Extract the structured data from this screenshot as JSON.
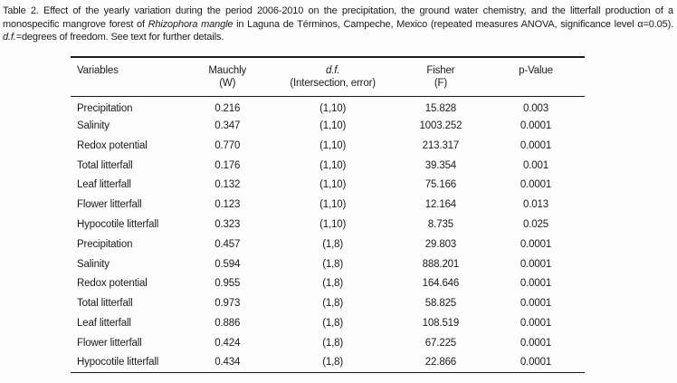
{
  "colors": {
    "background": "#fdfdfd",
    "text": "#1b1b1b",
    "rule": "#1b1b1b"
  },
  "caption": {
    "segments": [
      {
        "text": "Table 2. Effect of the yearly variation during the period 2006-2010 on the precipitation, the ground water chemistry, and the litterfall production of a monospecific mangrove forest of ",
        "italic": false
      },
      {
        "text": "Rhizophora mangle",
        "italic": true
      },
      {
        "text": " in Laguna de Términos, Campeche, Mexico (repeated measures ANOVA, significance level α=0.05). ",
        "italic": false
      },
      {
        "text": "d.f.",
        "italic": true
      },
      {
        "text": "=degrees of freedom. See text for further details.",
        "italic": false
      }
    ]
  },
  "table": {
    "headers": [
      {
        "line1": "Variables",
        "line2": ""
      },
      {
        "line1": "Mauchly",
        "line2": "(W)"
      },
      {
        "line1": "d.f.",
        "line2": "(Intersection, error)"
      },
      {
        "line1": "Fisher",
        "line2": "(F)"
      },
      {
        "line1": "p-Value",
        "line2": ""
      }
    ],
    "rows": [
      [
        "Precipitation",
        "0.216",
        "(1,10)",
        "15.828",
        "0.003"
      ],
      [
        "Salinity",
        "0.347",
        "(1,10)",
        "1003.252",
        "0.0001"
      ],
      [
        "Redox potential",
        "0.770",
        "(1,10)",
        "213.317",
        "0.0001"
      ],
      [
        "Total litterfall",
        "0.176",
        "(1,10)",
        "39.354",
        "0.001"
      ],
      [
        "Leaf litterfall",
        "0.132",
        "(1,10)",
        "75.166",
        "0.0001"
      ],
      [
        "Flower litterfall",
        "0.123",
        "(1,10)",
        "12.164",
        "0.013"
      ],
      [
        "Hypocotile litterfall",
        "0.323",
        "(1,10)",
        "8.735",
        "0.025"
      ],
      [
        "Precipitation",
        "0.457",
        "(1,8)",
        "29.803",
        "0.0001"
      ],
      [
        "Salinity",
        "0.594",
        "(1,8)",
        "888.201",
        "0.0001"
      ],
      [
        "Redox potential",
        "0.955",
        "(1,8)",
        "164.646",
        "0.0001"
      ],
      [
        "Total litterfall",
        "0.973",
        "(1,8)",
        "58.825",
        "0.0001"
      ],
      [
        "Leaf litterfall",
        "0.886",
        "(1,8)",
        "108.519",
        "0.0001"
      ],
      [
        "Flower litterfall",
        "0.424",
        "(1,8)",
        "67.225",
        "0.0001"
      ],
      [
        "Hypocotile litterfall",
        "0.434",
        "(1,8)",
        "22.866",
        "0.0001"
      ]
    ]
  }
}
